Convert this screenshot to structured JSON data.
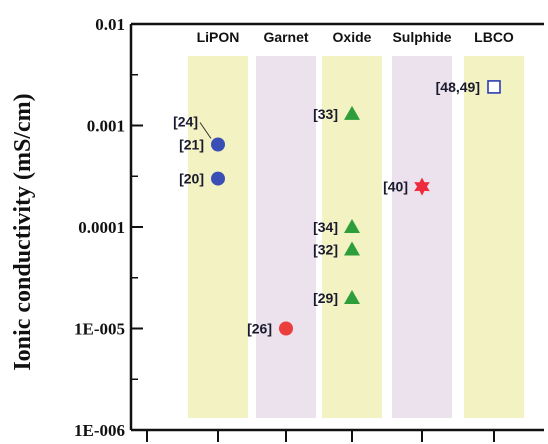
{
  "chart_data": {
    "type": "scatter",
    "title": "",
    "xlabel": "",
    "ylabel": "Ionic conductivity (mS/cm)",
    "yscale": "log",
    "ylim": [
      1e-06,
      0.01
    ],
    "y_ticks": [
      {
        "value": 0.01,
        "label": "0.01"
      },
      {
        "value": 0.001,
        "label": "0.001"
      },
      {
        "value": 0.0001,
        "label": "0.0001"
      },
      {
        "value": 1e-05,
        "label": "1E-005"
      },
      {
        "value": 1e-06,
        "label": "1E-006"
      }
    ],
    "categories": [
      "LiPON",
      "Garnet",
      "Oxide",
      "Sulphide",
      "LBCO"
    ],
    "category_colors": [
      "#f3f2c3",
      "#ebe2ee",
      "#f3f2c3",
      "#ebe2ee",
      "#f3f2c3"
    ],
    "grid": false,
    "legend": "none",
    "points": [
      {
        "category": "LiPON",
        "y": 0.00065,
        "label": "[21]",
        "marker": "circle",
        "color": "#3a4fb5"
      },
      {
        "category": "LiPON",
        "y": 0.00065,
        "label": "[24]",
        "marker": "circle",
        "color": "#3a4fb5"
      },
      {
        "category": "LiPON",
        "y": 0.0003,
        "label": "[20]",
        "marker": "circle",
        "color": "#3a4fb5"
      },
      {
        "category": "Garnet",
        "y": 1e-05,
        "label": "[26]",
        "marker": "circle",
        "color": "#ec3d3d"
      },
      {
        "category": "Oxide",
        "y": 0.0013,
        "label": "[33]",
        "marker": "triangle",
        "color": "#2e9e3a"
      },
      {
        "category": "Oxide",
        "y": 0.0001,
        "label": "[34]",
        "marker": "triangle",
        "color": "#2e9e3a"
      },
      {
        "category": "Oxide",
        "y": 6e-05,
        "label": "[32]",
        "marker": "triangle",
        "color": "#2e9e3a"
      },
      {
        "category": "Oxide",
        "y": 2e-05,
        "label": "[29]",
        "marker": "triangle",
        "color": "#2e9e3a"
      },
      {
        "category": "Sulphide",
        "y": 0.00025,
        "label": "[40]",
        "marker": "star",
        "color": "#ee2b3c"
      },
      {
        "category": "LBCO",
        "y": 0.0024,
        "label": "[48,49]",
        "marker": "square",
        "color": "#2a3db0"
      }
    ]
  }
}
